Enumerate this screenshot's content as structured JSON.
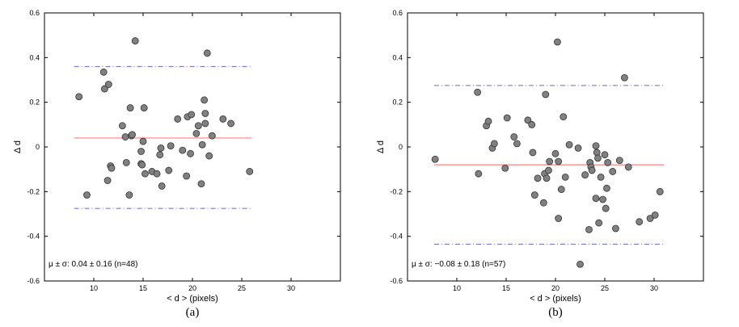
{
  "chart_data": [
    {
      "type": "scatter",
      "panel_label": "(a)",
      "xlabel": "< d > (pixels)",
      "ylabel": "Δ d",
      "xlim": [
        5,
        35
      ],
      "ylim": [
        -0.6,
        0.6
      ],
      "xticks": [
        "10",
        "15",
        "20",
        "25",
        "30"
      ],
      "yticks": [
        "0.6",
        "0.4",
        "0.2",
        "0",
        "-0.2",
        "-0.4",
        "-0.6"
      ],
      "mean": 0.04,
      "upper_limit": 0.36,
      "lower_limit": -0.275,
      "annotation": "μ ± σ: 0.04 ± 0.16  (n=48)",
      "colors": {
        "points": "#808080",
        "mean_line": "#ff8080",
        "limit_lines": "#6666dd"
      },
      "points": [
        [
          8.5,
          0.225
        ],
        [
          9.3,
          -0.215
        ],
        [
          11.0,
          0.335
        ],
        [
          11.1,
          0.26
        ],
        [
          11.4,
          -0.15
        ],
        [
          11.5,
          0.28
        ],
        [
          11.7,
          -0.085
        ],
        [
          11.8,
          -0.095
        ],
        [
          12.9,
          0.095
        ],
        [
          13.2,
          0.045
        ],
        [
          13.3,
          -0.07
        ],
        [
          13.6,
          -0.215
        ],
        [
          13.7,
          0.175
        ],
        [
          13.8,
          0.05
        ],
        [
          13.9,
          0.055
        ],
        [
          14.2,
          0.475
        ],
        [
          14.8,
          -0.02
        ],
        [
          14.8,
          -0.075
        ],
        [
          14.9,
          -0.08
        ],
        [
          15.0,
          0.025
        ],
        [
          15.1,
          0.175
        ],
        [
          15.2,
          -0.12
        ],
        [
          15.9,
          -0.11
        ],
        [
          16.4,
          -0.12
        ],
        [
          16.7,
          -0.035
        ],
        [
          16.8,
          -0.005
        ],
        [
          16.9,
          -0.175
        ],
        [
          17.6,
          -0.105
        ],
        [
          17.8,
          0.005
        ],
        [
          18.5,
          0.125
        ],
        [
          19.0,
          -0.015
        ],
        [
          19.4,
          -0.13
        ],
        [
          19.5,
          0.135
        ],
        [
          19.8,
          -0.03
        ],
        [
          19.9,
          0.145
        ],
        [
          20.4,
          0.06
        ],
        [
          20.6,
          0.095
        ],
        [
          20.9,
          -0.165
        ],
        [
          21.0,
          0.01
        ],
        [
          21.2,
          0.21
        ],
        [
          21.3,
          0.15
        ],
        [
          21.3,
          0.105
        ],
        [
          21.5,
          0.42
        ],
        [
          21.7,
          -0.04
        ],
        [
          22.0,
          0.05
        ],
        [
          23.1,
          0.125
        ],
        [
          23.9,
          0.105
        ],
        [
          25.8,
          -0.11
        ]
      ]
    },
    {
      "type": "scatter",
      "panel_label": "(b)",
      "xlabel": "< d > (pixels)",
      "ylabel": "Δ d",
      "xlim": [
        5,
        35
      ],
      "ylim": [
        -0.6,
        0.6
      ],
      "xticks": [
        "10",
        "15",
        "20",
        "25",
        "30"
      ],
      "yticks": [
        "0.6",
        "0.4",
        "0.2",
        "0",
        "-0.2",
        "-0.4",
        "-0.6"
      ],
      "mean": -0.08,
      "upper_limit": 0.275,
      "lower_limit": -0.435,
      "annotation": "μ ± σ: −0.08 ± 0.18  (n=57)",
      "colors": {
        "points": "#808080",
        "mean_line": "#ff8080",
        "limit_lines": "#6666dd"
      },
      "points": [
        [
          7.8,
          -0.055
        ],
        [
          12.1,
          0.245
        ],
        [
          12.2,
          -0.12
        ],
        [
          13.0,
          0.095
        ],
        [
          13.2,
          0.115
        ],
        [
          13.6,
          -0.005
        ],
        [
          13.8,
          0.015
        ],
        [
          14.9,
          -0.095
        ],
        [
          15.1,
          0.13
        ],
        [
          15.8,
          0.045
        ],
        [
          16.1,
          0.015
        ],
        [
          17.2,
          0.12
        ],
        [
          17.6,
          0.1
        ],
        [
          17.7,
          -0.025
        ],
        [
          17.9,
          -0.215
        ],
        [
          18.2,
          -0.14
        ],
        [
          18.8,
          -0.25
        ],
        [
          18.9,
          -0.12
        ],
        [
          19.0,
          0.235
        ],
        [
          19.1,
          -0.14
        ],
        [
          19.3,
          -0.105
        ],
        [
          19.4,
          -0.065
        ],
        [
          20.0,
          -0.03
        ],
        [
          20.2,
          0.47
        ],
        [
          20.3,
          -0.065
        ],
        [
          20.3,
          -0.32
        ],
        [
          20.6,
          -0.19
        ],
        [
          20.8,
          0.135
        ],
        [
          21.0,
          -0.135
        ],
        [
          21.4,
          0.01
        ],
        [
          22.3,
          -0.005
        ],
        [
          22.5,
          -0.525
        ],
        [
          23.0,
          -0.125
        ],
        [
          23.4,
          -0.37
        ],
        [
          23.5,
          -0.07
        ],
        [
          23.6,
          -0.09
        ],
        [
          23.7,
          -0.105
        ],
        [
          24.1,
          -0.23
        ],
        [
          24.1,
          0.005
        ],
        [
          24.2,
          -0.025
        ],
        [
          24.3,
          -0.05
        ],
        [
          24.4,
          -0.34
        ],
        [
          24.6,
          -0.135
        ],
        [
          24.8,
          -0.235
        ],
        [
          25.0,
          -0.035
        ],
        [
          25.1,
          -0.275
        ],
        [
          25.2,
          -0.185
        ],
        [
          25.3,
          -0.07
        ],
        [
          25.8,
          -0.11
        ],
        [
          26.1,
          -0.365
        ],
        [
          26.5,
          -0.06
        ],
        [
          27.0,
          0.31
        ],
        [
          27.4,
          -0.09
        ],
        [
          28.5,
          -0.335
        ],
        [
          29.6,
          -0.32
        ],
        [
          30.6,
          -0.2
        ],
        [
          30.1,
          -0.305
        ]
      ]
    }
  ]
}
